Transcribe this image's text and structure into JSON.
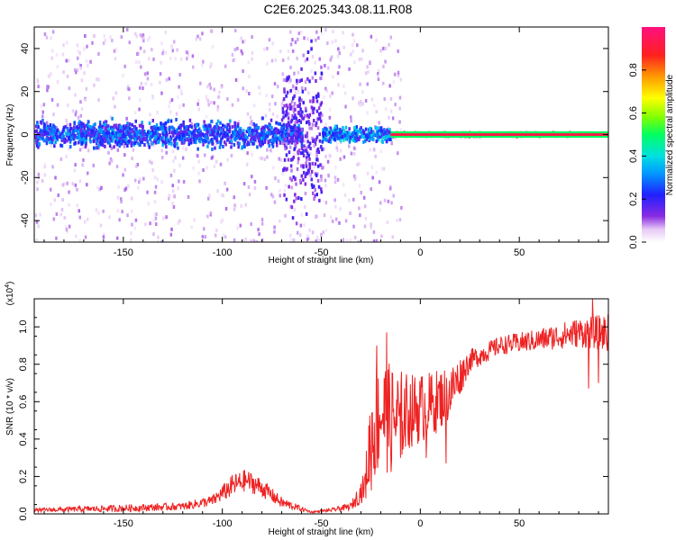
{
  "title": "C2E6.2025.343.08.11.R08",
  "chart_data": [
    {
      "type": "heatmap",
      "xlabel": "Height of straight line (km)",
      "ylabel": "Frequency (Hz)",
      "xlim": [
        -195,
        95
      ],
      "ylim": [
        -50,
        50
      ],
      "xticks": [
        -150,
        -100,
        -50,
        0,
        50
      ],
      "yticks": [
        -40,
        -20,
        0,
        20,
        40
      ],
      "colorbar": {
        "label": "Normalized spectral amplitude",
        "range": [
          0.0,
          1.0
        ],
        "ticks": [
          0.0,
          0.2,
          0.4,
          0.6,
          0.8
        ],
        "tick_labels": [
          "0.0",
          "0.2",
          "0.4",
          "0.6",
          "0.8"
        ]
      },
      "features": [
        {
          "x_range": [
            -195,
            -60
          ],
          "freq_center": 0,
          "freq_halfwidth": 8,
          "amplitude": 0.25
        },
        {
          "x_range": [
            -70,
            -50
          ],
          "freq_center": 0,
          "freq_halfwidth": 50,
          "amplitude": 0.15
        },
        {
          "x_range": [
            -50,
            -15
          ],
          "freq_center": 0,
          "freq_halfwidth": 5,
          "amplitude": 0.3
        },
        {
          "x_range": [
            -15,
            95
          ],
          "freq_center": 0,
          "freq_halfwidth": 1,
          "amplitude": 0.95
        }
      ]
    },
    {
      "type": "line",
      "xlabel": "Height of straight line (km)",
      "ylabel": "SNR (10 * v/v)",
      "multiplier_label": "(x10",
      "multiplier_exp": "4",
      "multiplier_close": ")",
      "xlim": [
        -195,
        95
      ],
      "ylim": [
        0,
        1.15
      ],
      "xticks": [
        -150,
        -100,
        -50,
        0,
        50
      ],
      "yticks": [
        0.0,
        0.2,
        0.4,
        0.6,
        0.8,
        1.0
      ],
      "ytick_labels": [
        "0.0",
        "0.2",
        "0.4",
        "0.6",
        "0.8",
        "1.0"
      ],
      "series": [
        {
          "name": "SNR",
          "color": "#ee2222",
          "envelope": [
            {
              "x": -195,
              "mean": 0.02,
              "spread": 0.01
            },
            {
              "x": -150,
              "mean": 0.03,
              "spread": 0.02
            },
            {
              "x": -120,
              "mean": 0.04,
              "spread": 0.02
            },
            {
              "x": -105,
              "mean": 0.07,
              "spread": 0.03
            },
            {
              "x": -95,
              "mean": 0.15,
              "spread": 0.06
            },
            {
              "x": -88,
              "mean": 0.18,
              "spread": 0.06
            },
            {
              "x": -80,
              "mean": 0.14,
              "spread": 0.05
            },
            {
              "x": -70,
              "mean": 0.06,
              "spread": 0.03
            },
            {
              "x": -55,
              "mean": 0.01,
              "spread": 0.005
            },
            {
              "x": -45,
              "mean": 0.02,
              "spread": 0.01
            },
            {
              "x": -35,
              "mean": 0.04,
              "spread": 0.02
            },
            {
              "x": -28,
              "mean": 0.15,
              "spread": 0.08
            },
            {
              "x": -25,
              "mean": 0.4,
              "spread": 0.3
            },
            {
              "x": -20,
              "mean": 0.55,
              "spread": 0.3
            },
            {
              "x": -15,
              "mean": 0.5,
              "spread": 0.3
            },
            {
              "x": -5,
              "mean": 0.55,
              "spread": 0.2
            },
            {
              "x": 5,
              "mean": 0.58,
              "spread": 0.18
            },
            {
              "x": 15,
              "mean": 0.65,
              "spread": 0.15
            },
            {
              "x": 25,
              "mean": 0.82,
              "spread": 0.06
            },
            {
              "x": 40,
              "mean": 0.9,
              "spread": 0.05
            },
            {
              "x": 60,
              "mean": 0.93,
              "spread": 0.06
            },
            {
              "x": 80,
              "mean": 0.97,
              "spread": 0.08
            },
            {
              "x": 95,
              "mean": 0.97,
              "spread": 0.1
            }
          ],
          "spikes": [
            {
              "x": -22,
              "value": 0.9
            },
            {
              "x": -17,
              "value": 0.97
            },
            {
              "x": -10,
              "value": 0.3
            },
            {
              "x": 3,
              "value": 0.3
            },
            {
              "x": 13,
              "value": 0.27
            },
            {
              "x": 87,
              "value": 1.15
            },
            {
              "x": 90,
              "value": 0.7
            },
            {
              "x": 85,
              "value": 0.67
            }
          ]
        }
      ]
    }
  ]
}
